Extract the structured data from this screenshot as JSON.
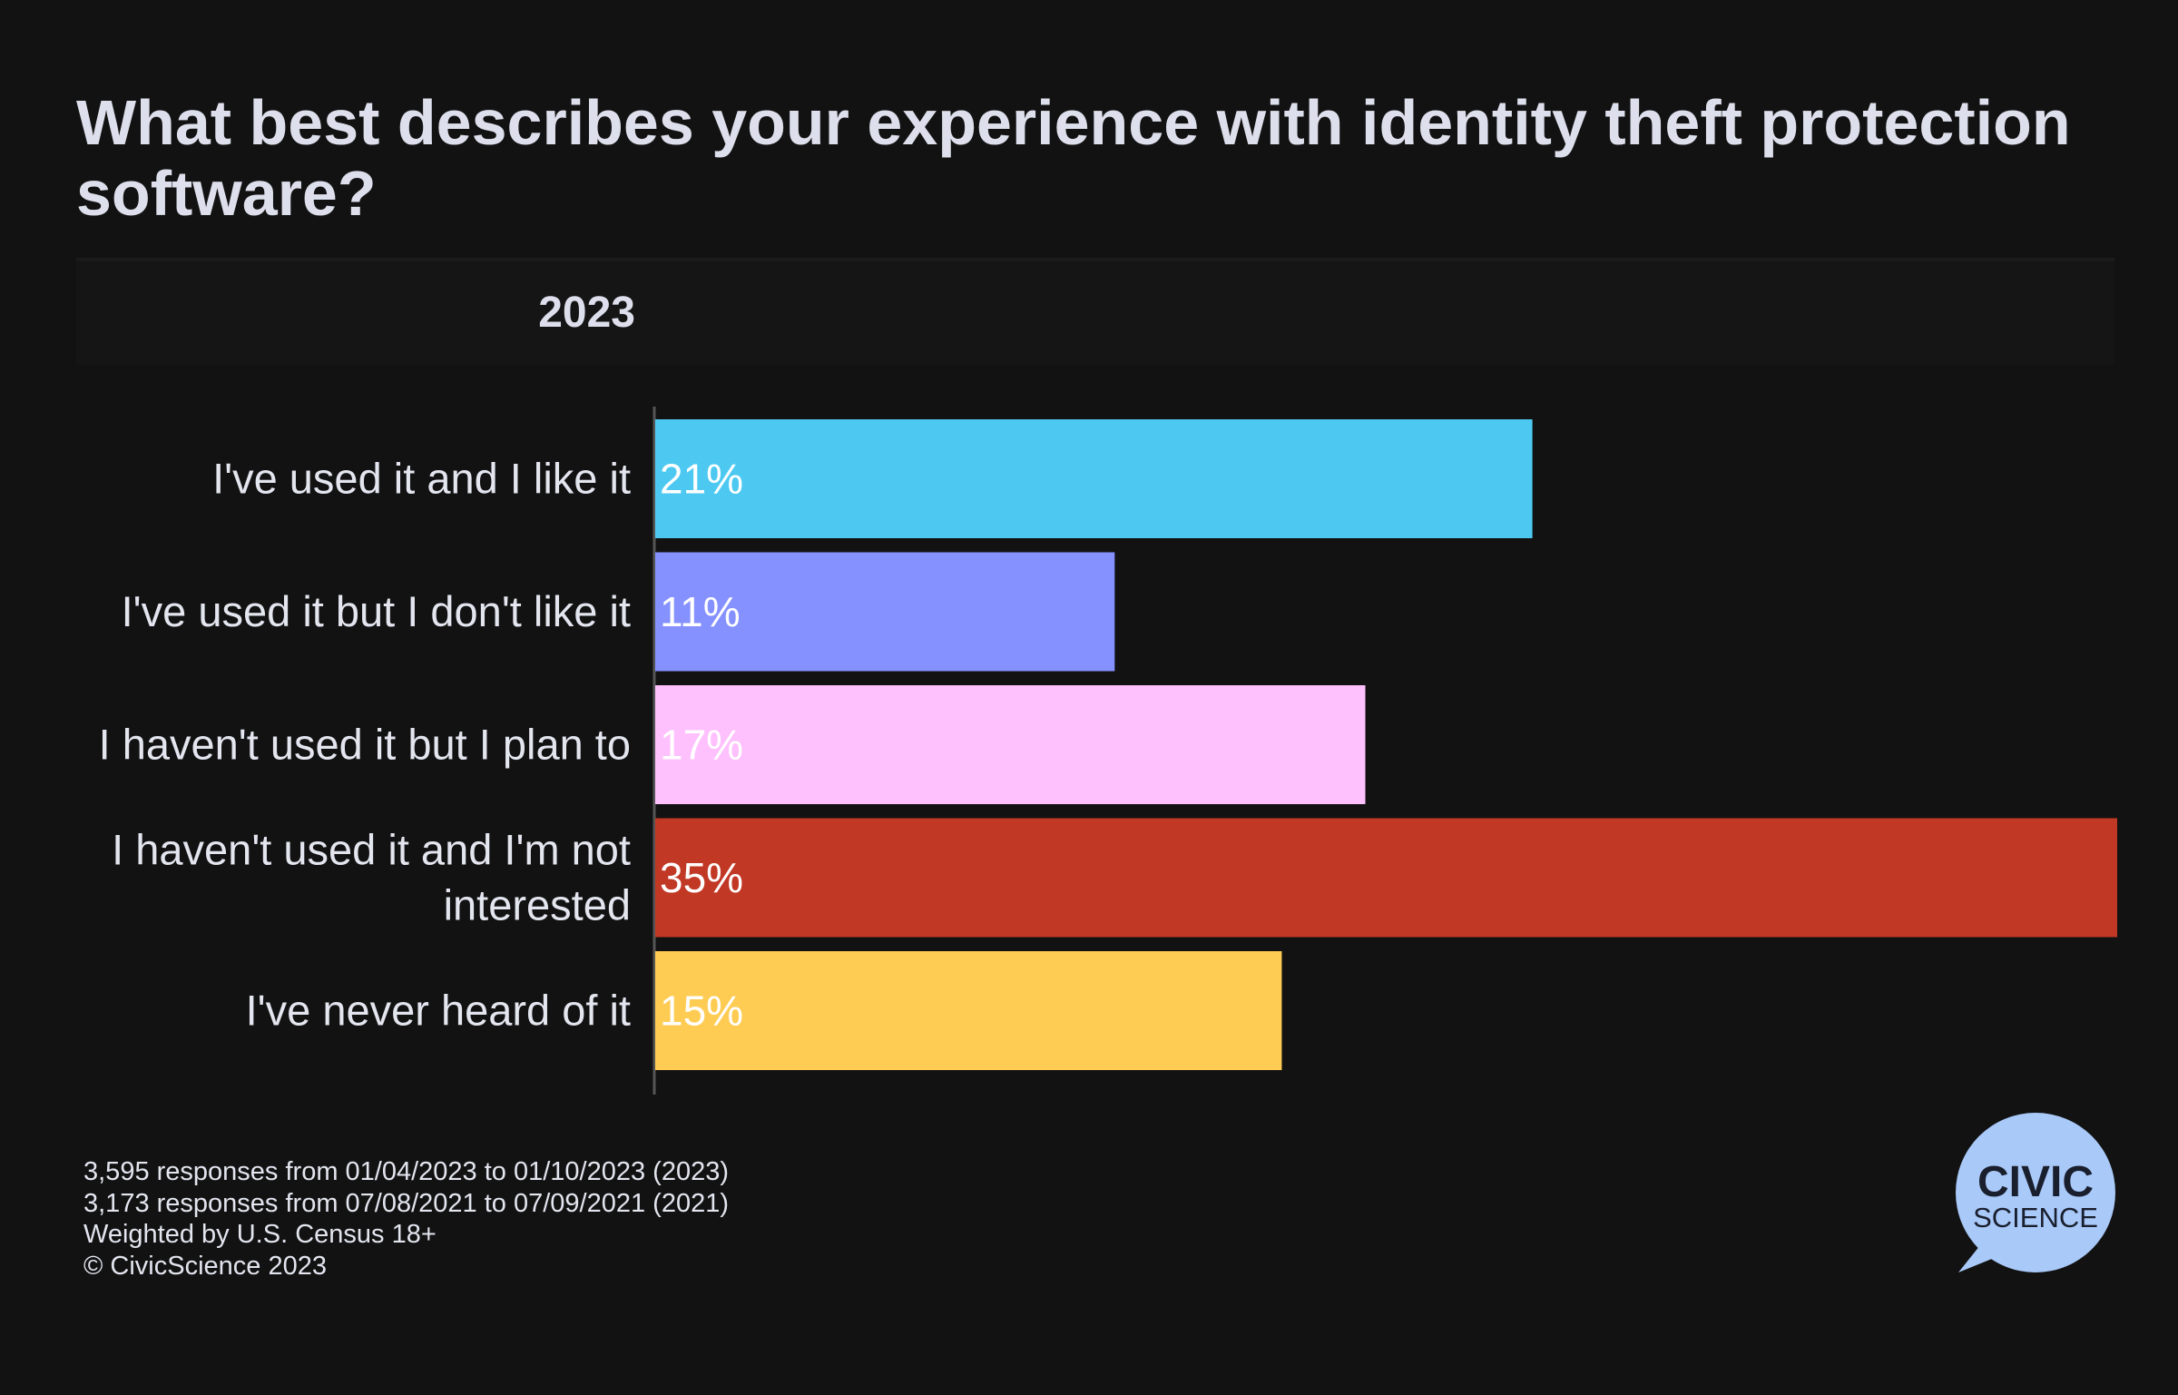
{
  "title": "What best describes your experience with identity theft protection software?",
  "tab": {
    "label": "2023"
  },
  "chart_data": {
    "type": "bar",
    "orientation": "horizontal",
    "categories": [
      "I've used it and I like it",
      "I've used it but I don't like it",
      "I haven't used it but I plan to",
      "I haven't used it and I'm not interested",
      "I've never heard of it"
    ],
    "category_lines": [
      [
        "I've used it and I like it"
      ],
      [
        "I've used it but I don't like it"
      ],
      [
        "I haven't used it but I plan to"
      ],
      [
        "I haven't used it and I'm not",
        "interested"
      ],
      [
        "I've never heard of it"
      ]
    ],
    "values": [
      21,
      11,
      17,
      35,
      15
    ],
    "value_labels": [
      "21%",
      "11%",
      "17%",
      "35%",
      "15%"
    ],
    "colors": [
      "#4dc9f1",
      "#8591ff",
      "#ffc1fe",
      "#c13825",
      "#ffcc53"
    ],
    "xlim": [
      0,
      35
    ],
    "unit": "%",
    "grid": false
  },
  "footer": {
    "lines": [
      "3,595 responses from 01/04/2023 to 01/10/2023 (2023)",
      "3,173 responses from 07/08/2021 to 07/09/2021 (2021)",
      "Weighted by U.S. Census 18+",
      "© CivicScience 2023"
    ]
  },
  "logo": {
    "line1": "CIVIC",
    "line2": "SCIENCE",
    "color": "#a9c9f9"
  }
}
